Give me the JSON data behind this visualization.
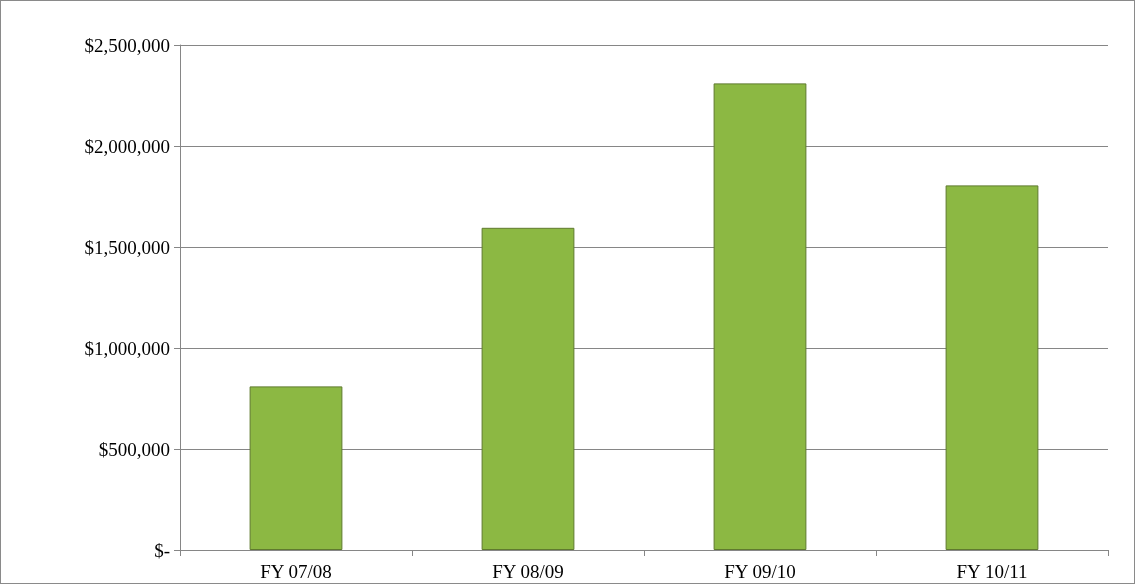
{
  "chart_data": {
    "type": "bar",
    "categories": [
      "FY 07/08",
      "FY 08/09",
      "FY 09/10",
      "FY 10/11"
    ],
    "values": [
      810000,
      1595000,
      2310000,
      1805000
    ],
    "color": "#8cb843",
    "ylim": [
      0,
      2500000
    ],
    "yticks": [
      {
        "value": 0,
        "label": "$-"
      },
      {
        "value": 500000,
        "label": "$500,000"
      },
      {
        "value": 1000000,
        "label": "$1,000,000"
      },
      {
        "value": 1500000,
        "label": "$1,500,000"
      },
      {
        "value": 2000000,
        "label": "$2,000,000"
      },
      {
        "value": 2500000,
        "label": "$2,500,000"
      }
    ],
    "grid": "y"
  }
}
